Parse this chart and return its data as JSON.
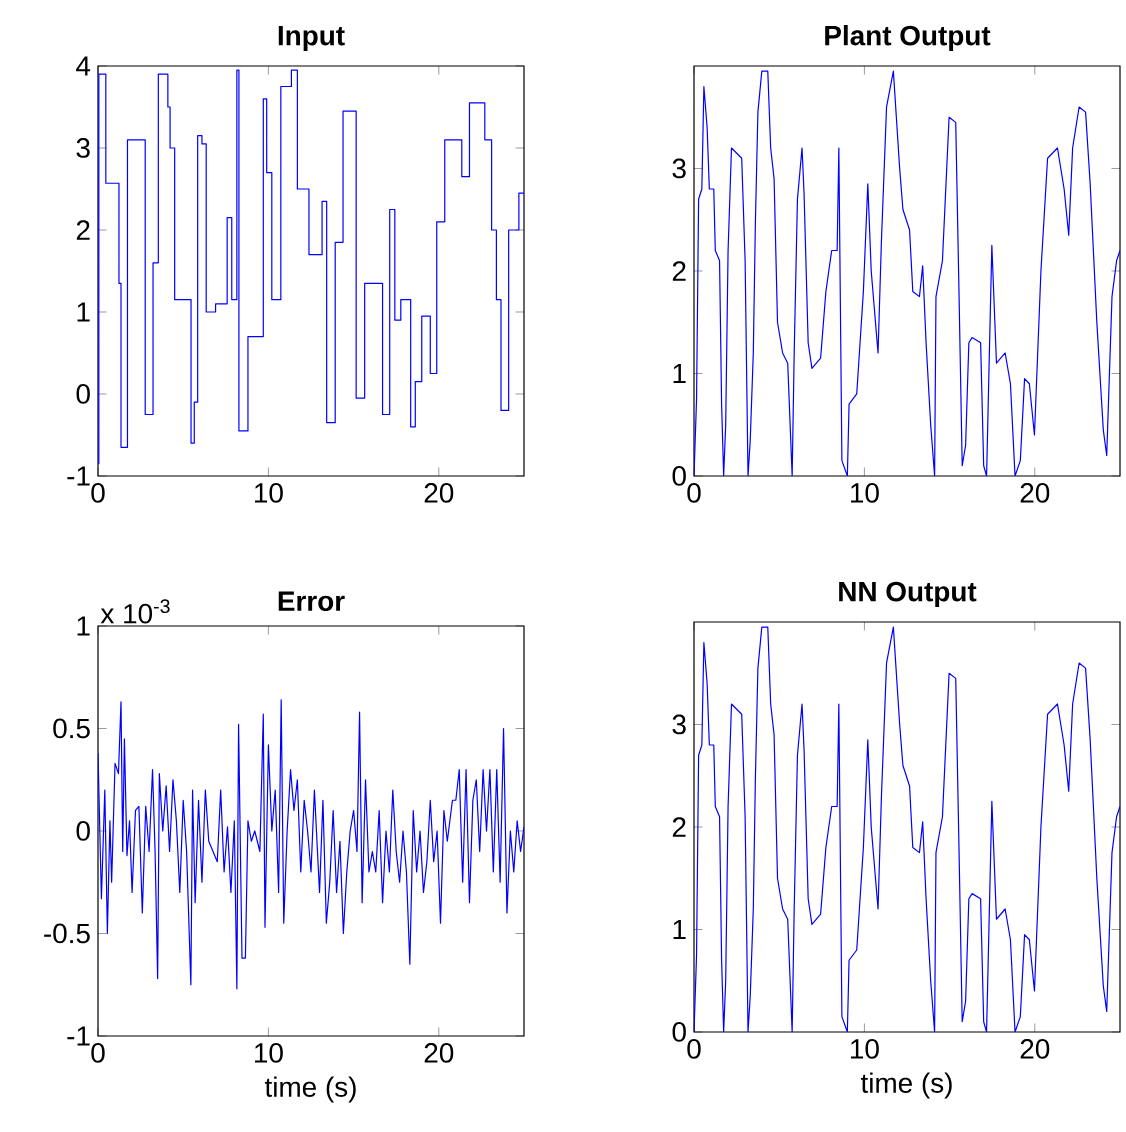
{
  "chart_data": [
    {
      "type": "step",
      "title": "Input",
      "color": "#0000ff",
      "xlim": [
        0,
        25
      ],
      "xticks": [
        0,
        10,
        20
      ],
      "ylim": [
        -1,
        4
      ],
      "yticks": [
        -1,
        0,
        1,
        2,
        3,
        4
      ],
      "x": [
        0,
        0.05,
        0.46,
        1.23,
        1.35,
        1.73,
        2.77,
        3.23,
        3.54,
        4.1,
        4.23,
        4.5,
        5.46,
        5.65,
        5.85,
        6.1,
        6.35,
        6.9,
        7.58,
        7.85,
        8.15,
        8.27,
        8.8,
        9.7,
        9.9,
        10.2,
        10.73,
        11.35,
        11.7,
        12.38,
        13.15,
        13.42,
        13.92,
        14.38,
        15.15,
        15.65,
        16.7,
        17.12,
        17.42,
        17.77,
        18.35,
        18.62,
        19.0,
        19.5,
        19.88,
        20.35,
        21.35,
        21.8,
        22.7,
        23.1,
        23.38,
        23.65,
        24.1,
        24.7,
        25
      ],
      "values": [
        -0.85,
        3.9,
        2.57,
        1.35,
        -0.65,
        3.1,
        -0.25,
        1.6,
        3.9,
        3.5,
        3.0,
        1.15,
        -0.6,
        -0.1,
        3.15,
        3.05,
        1.0,
        1.1,
        2.15,
        1.15,
        3.95,
        -0.45,
        0.7,
        3.6,
        2.7,
        1.15,
        3.75,
        3.95,
        2.5,
        1.7,
        2.35,
        -0.35,
        1.85,
        3.45,
        -0.05,
        1.35,
        -0.25,
        2.25,
        0.9,
        1.15,
        -0.4,
        0.15,
        0.95,
        0.25,
        2.1,
        3.1,
        2.65,
        3.55,
        3.1,
        2.0,
        1.15,
        -0.2,
        2.0,
        2.45,
        2.45
      ]
    },
    {
      "type": "line",
      "title": "Plant Output",
      "color": "#0000ff",
      "xlim": [
        0,
        25
      ],
      "xticks": [
        0,
        10,
        20
      ],
      "ylim": [
        0,
        4
      ],
      "yticks": [
        0,
        1,
        2,
        3
      ],
      "x": [
        0,
        0.15,
        0.27,
        0.46,
        0.58,
        0.77,
        0.9,
        1.16,
        1.25,
        1.5,
        1.62,
        1.74,
        1.86,
        2.0,
        2.2,
        2.8,
        3.0,
        3.17,
        3.3,
        3.48,
        3.6,
        3.75,
        3.98,
        4.33,
        4.5,
        4.7,
        4.9,
        5.2,
        5.5,
        5.76,
        5.88,
        6.07,
        6.34,
        6.46,
        6.7,
        6.92,
        7.43,
        7.74,
        8.08,
        8.4,
        8.5,
        8.68,
        9.0,
        9.1,
        9.55,
        9.94,
        10.2,
        10.4,
        10.8,
        11.0,
        11.3,
        11.7,
        12.07,
        12.26,
        12.65,
        12.84,
        13.23,
        13.42,
        13.62,
        13.89,
        14.12,
        14.2,
        14.58,
        14.97,
        15.36,
        15.55,
        15.74,
        15.94,
        16.13,
        16.32,
        16.82,
        17.0,
        17.17,
        17.3,
        17.48,
        17.75,
        18.26,
        18.57,
        18.84,
        19.15,
        19.4,
        19.68,
        19.98,
        20.36,
        20.75,
        21.33,
        21.72,
        21.99,
        22.22,
        22.6,
        22.98,
        23.25,
        23.64,
        24.02,
        24.22,
        24.53,
        24.8,
        25
      ],
      "values": [
        0,
        0.75,
        2.7,
        2.8,
        3.8,
        3.4,
        2.8,
        2.8,
        2.2,
        2.1,
        0.7,
        0,
        0.5,
        2.2,
        3.2,
        3.1,
        2.1,
        0,
        0.35,
        1.2,
        2.45,
        3.55,
        3.95,
        3.95,
        3.2,
        2.9,
        1.5,
        1.2,
        1.1,
        0,
        1.2,
        2.7,
        3.2,
        2.75,
        1.3,
        1.05,
        1.15,
        1.8,
        2.2,
        2.2,
        3.2,
        0.15,
        0,
        0.7,
        0.8,
        1.8,
        2.85,
        2.0,
        1.2,
        2.3,
        3.6,
        3.95,
        3.0,
        2.6,
        2.4,
        1.8,
        1.75,
        2.05,
        1.3,
        0.5,
        0,
        1.75,
        2.1,
        3.5,
        3.45,
        1.8,
        0.1,
        0.3,
        1.3,
        1.35,
        1.3,
        0.1,
        0,
        0.95,
        2.25,
        1.1,
        1.2,
        0.9,
        0,
        0.15,
        0.95,
        0.9,
        0.4,
        2.0,
        3.1,
        3.2,
        2.8,
        2.35,
        3.2,
        3.6,
        3.55,
        2.85,
        1.5,
        0.45,
        0.2,
        1.75,
        2.1,
        2.2
      ]
    },
    {
      "type": "line",
      "title": "Error",
      "xlabel": "time (s)",
      "annotations": [
        "x 10$^{-3}$"
      ],
      "color": "#0000ff",
      "xlim": [
        0,
        25
      ],
      "xticks": [
        0,
        10,
        20
      ],
      "ylim": [
        -1,
        1
      ],
      "yticks": [
        -1,
        -0.5,
        0,
        0.5,
        1
      ],
      "x": [
        0,
        0.2,
        0.4,
        0.55,
        0.7,
        0.8,
        1.0,
        1.2,
        1.35,
        1.45,
        1.55,
        1.7,
        1.85,
        2.0,
        2.2,
        2.4,
        2.6,
        2.8,
        3.0,
        3.2,
        3.35,
        3.5,
        3.6,
        3.8,
        4.0,
        4.2,
        4.4,
        4.6,
        4.8,
        5.0,
        5.2,
        5.45,
        5.55,
        5.7,
        5.9,
        6.1,
        6.3,
        6.5,
        7.0,
        7.2,
        7.4,
        7.6,
        7.8,
        8.0,
        8.15,
        8.25,
        8.45,
        8.65,
        8.8,
        9.0,
        9.2,
        9.5,
        9.7,
        9.8,
        10.0,
        10.2,
        10.4,
        10.6,
        10.75,
        10.9,
        11.1,
        11.3,
        11.5,
        11.7,
        11.9,
        12.1,
        12.3,
        12.5,
        12.7,
        13.0,
        13.2,
        13.4,
        13.6,
        13.8,
        14.0,
        14.2,
        14.4,
        14.6,
        14.8,
        15.0,
        15.2,
        15.35,
        15.5,
        15.7,
        15.9,
        16.1,
        16.3,
        16.5,
        16.7,
        16.9,
        17.1,
        17.3,
        17.5,
        17.7,
        17.9,
        18.1,
        18.3,
        18.5,
        18.7,
        18.9,
        19.1,
        19.3,
        19.5,
        19.7,
        19.9,
        20.1,
        20.3,
        20.5,
        20.8,
        21.0,
        21.2,
        21.4,
        21.6,
        21.8,
        22.0,
        22.2,
        22.4,
        22.6,
        22.8,
        23.0,
        23.2,
        23.4,
        23.6,
        23.8,
        24.0,
        24.2,
        24.4,
        24.6,
        24.8,
        25
      ],
      "values": [
        0.38,
        -0.33,
        0.2,
        -0.5,
        0.05,
        -0.25,
        0.33,
        0.28,
        0.63,
        -0.1,
        0.45,
        -0.12,
        0.05,
        -0.3,
        0.1,
        0.12,
        -0.4,
        0.12,
        -0.1,
        0.3,
        -0.1,
        -0.72,
        0.28,
        0.0,
        0.22,
        -0.1,
        0.25,
        0.05,
        -0.3,
        0.15,
        -0.1,
        -0.75,
        0.2,
        -0.35,
        0.15,
        -0.25,
        0.2,
        -0.05,
        -0.15,
        0.2,
        -0.2,
        0.02,
        -0.3,
        0.05,
        -0.77,
        0.52,
        -0.62,
        -0.62,
        0.05,
        -0.05,
        0.0,
        -0.1,
        0.57,
        -0.47,
        0.42,
        0.0,
        0.2,
        -0.3,
        0.64,
        -0.45,
        0.0,
        0.3,
        0.1,
        0.25,
        -0.2,
        0.15,
        0.0,
        -0.2,
        0.2,
        -0.3,
        0.15,
        -0.45,
        -0.25,
        0.1,
        -0.3,
        -0.05,
        -0.5,
        -0.2,
        0.0,
        0.1,
        -0.1,
        0.58,
        -0.35,
        0.25,
        -0.2,
        -0.1,
        -0.2,
        0.1,
        -0.35,
        0.0,
        -0.2,
        0.2,
        -0.1,
        -0.25,
        0.0,
        -0.2,
        -0.65,
        0.1,
        -0.2,
        0.0,
        -0.3,
        -0.15,
        0.15,
        -0.15,
        0.0,
        -0.45,
        0.1,
        -0.05,
        0.15,
        0.15,
        0.3,
        -0.25,
        0.3,
        -0.35,
        0.15,
        0.25,
        -0.1,
        0.3,
        0.0,
        0.3,
        -0.2,
        0.3,
        -0.25,
        0.5,
        -0.4,
        0.0,
        -0.2,
        0.05,
        -0.1,
        0.02
      ]
    },
    {
      "type": "line",
      "title": "NN Output",
      "xlabel": "time (s)",
      "color": "#0000ff",
      "xlim": [
        0,
        25
      ],
      "xticks": [
        0,
        10,
        20
      ],
      "ylim": [
        0,
        4
      ],
      "yticks": [
        0,
        1,
        2,
        3
      ],
      "x": [
        0,
        0.15,
        0.27,
        0.46,
        0.58,
        0.77,
        0.9,
        1.16,
        1.25,
        1.5,
        1.62,
        1.74,
        1.86,
        2.0,
        2.2,
        2.8,
        3.0,
        3.17,
        3.3,
        3.48,
        3.6,
        3.75,
        3.98,
        4.33,
        4.5,
        4.7,
        4.9,
        5.2,
        5.5,
        5.76,
        5.88,
        6.07,
        6.34,
        6.46,
        6.7,
        6.92,
        7.43,
        7.74,
        8.08,
        8.4,
        8.5,
        8.68,
        9.0,
        9.1,
        9.55,
        9.94,
        10.2,
        10.4,
        10.8,
        11.0,
        11.3,
        11.7,
        12.07,
        12.26,
        12.65,
        12.84,
        13.23,
        13.42,
        13.62,
        13.89,
        14.12,
        14.2,
        14.58,
        14.97,
        15.36,
        15.55,
        15.74,
        15.94,
        16.13,
        16.32,
        16.82,
        17.0,
        17.17,
        17.3,
        17.48,
        17.75,
        18.26,
        18.57,
        18.84,
        19.15,
        19.4,
        19.68,
        19.98,
        20.36,
        20.75,
        21.33,
        21.72,
        21.99,
        22.22,
        22.6,
        22.98,
        23.25,
        23.64,
        24.02,
        24.22,
        24.53,
        24.8,
        25
      ],
      "values": [
        0,
        0.75,
        2.7,
        2.8,
        3.8,
        3.4,
        2.8,
        2.8,
        2.2,
        2.1,
        0.7,
        0,
        0.5,
        2.2,
        3.2,
        3.1,
        2.1,
        0,
        0.35,
        1.2,
        2.45,
        3.55,
        3.95,
        3.95,
        3.2,
        2.9,
        1.5,
        1.2,
        1.1,
        0,
        1.2,
        2.7,
        3.2,
        2.75,
        1.3,
        1.05,
        1.15,
        1.8,
        2.2,
        2.2,
        3.2,
        0.15,
        0,
        0.7,
        0.8,
        1.8,
        2.85,
        2.0,
        1.2,
        2.3,
        3.6,
        3.95,
        3.0,
        2.6,
        2.4,
        1.8,
        1.75,
        2.05,
        1.3,
        0.5,
        0,
        1.75,
        2.1,
        3.5,
        3.45,
        1.8,
        0.1,
        0.3,
        1.3,
        1.35,
        1.3,
        0.1,
        0,
        0.95,
        2.25,
        1.1,
        1.2,
        0.9,
        0,
        0.15,
        0.95,
        0.9,
        0.4,
        2.0,
        3.1,
        3.2,
        2.8,
        2.35,
        3.2,
        3.6,
        3.55,
        2.85,
        1.5,
        0.45,
        0.2,
        1.75,
        2.1,
        2.2
      ]
    }
  ]
}
